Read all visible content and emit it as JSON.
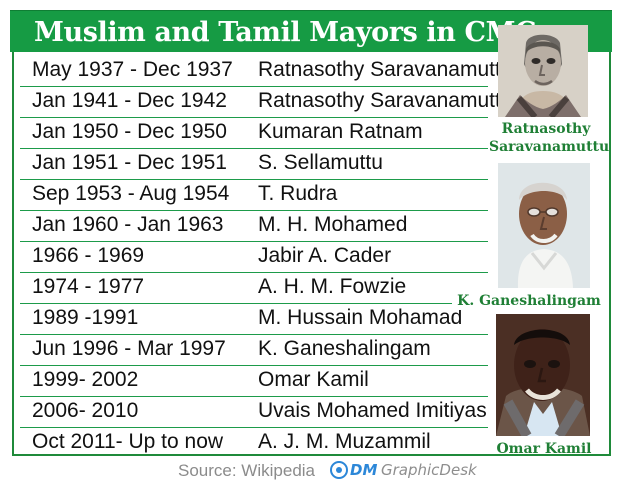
{
  "header": {
    "title": "Muslim and Tamil Mayors in CMC"
  },
  "table": {
    "rows": [
      {
        "period": "May 1937 - Dec 1937",
        "name": "Ratnasothy Saravanamuttu"
      },
      {
        "period": "Jan 1941 - Dec 1942",
        "name": "Ratnasothy Saravanamuttu"
      },
      {
        "period": "Jan 1950 - Dec 1950",
        "name": "Kumaran Ratnam"
      },
      {
        "period": "Jan 1951 - Dec 1951",
        "name": "S. Sellamuttu"
      },
      {
        "period": "Sep 1953 - Aug 1954",
        "name": "T. Rudra"
      },
      {
        "period": "Jan 1960 - Jan 1963",
        "name": "M. H. Mohamed"
      },
      {
        "period": "1966 - 1969",
        "name": "Jabir A. Cader"
      },
      {
        "period": "1974 - 1977",
        "name": "A. H. M. Fowzie"
      },
      {
        "period": "1989 -1991",
        "name": "M. Hussain Mohamad"
      },
      {
        "period": "Jun 1996 - Mar 1997",
        "name": "K. Ganeshalingam"
      },
      {
        "period": "1999- 2002",
        "name": "Omar Kamil"
      },
      {
        "period": "2006- 2010",
        "name": "Uvais Mohamed Imitiyas"
      },
      {
        "period": "Oct 2011-  Up to now",
        "name": "A. J. M. Muzammil"
      }
    ]
  },
  "portraits": [
    {
      "caption_line1": "Ratnasothy",
      "caption_line2": "Saravanamuttu"
    },
    {
      "caption_line1": "K. Ganeshalingam"
    },
    {
      "caption_line1": "Omar Kamil"
    }
  ],
  "footer": {
    "source": "Source: Wikipedia",
    "brand": "DM",
    "desk": "GraphicDesk"
  },
  "colors": {
    "header_green": "#169b44",
    "rule_green": "#1d9b4a",
    "caption_green": "#1f7f35",
    "logo_blue": "#2c87d8"
  },
  "icons": {
    "footer_logo": "dm-circle-logo-icon"
  }
}
